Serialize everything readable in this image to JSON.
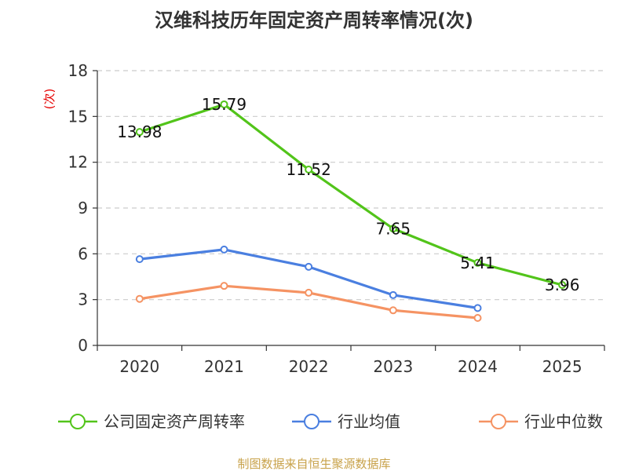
{
  "chart_data": {
    "type": "line",
    "title": "汉维科技历年固定资产周转率情况(次)",
    "ylabel": "(次)",
    "xlabel": "",
    "categories": [
      "2020",
      "2021",
      "2022",
      "2023",
      "2024",
      "2025"
    ],
    "ylim": [
      0,
      18
    ],
    "yticks": [
      0,
      3,
      6,
      9,
      12,
      15,
      18
    ],
    "grid": true,
    "legend_position": "bottom",
    "series": [
      {
        "name": "公司固定资产周转率",
        "color": "#52c41a",
        "values": [
          13.98,
          15.79,
          11.52,
          7.65,
          5.41,
          3.96
        ],
        "show_labels": true
      },
      {
        "name": "行业均值",
        "color": "#4a7fe0",
        "values": [
          5.65,
          6.28,
          5.15,
          3.3,
          2.45,
          null
        ],
        "show_labels": false
      },
      {
        "name": "行业中位数",
        "color": "#f59363",
        "values": [
          3.05,
          3.9,
          3.45,
          2.3,
          1.8,
          null
        ],
        "show_labels": false
      }
    ],
    "source": "制图数据来自恒生聚源数据库"
  }
}
